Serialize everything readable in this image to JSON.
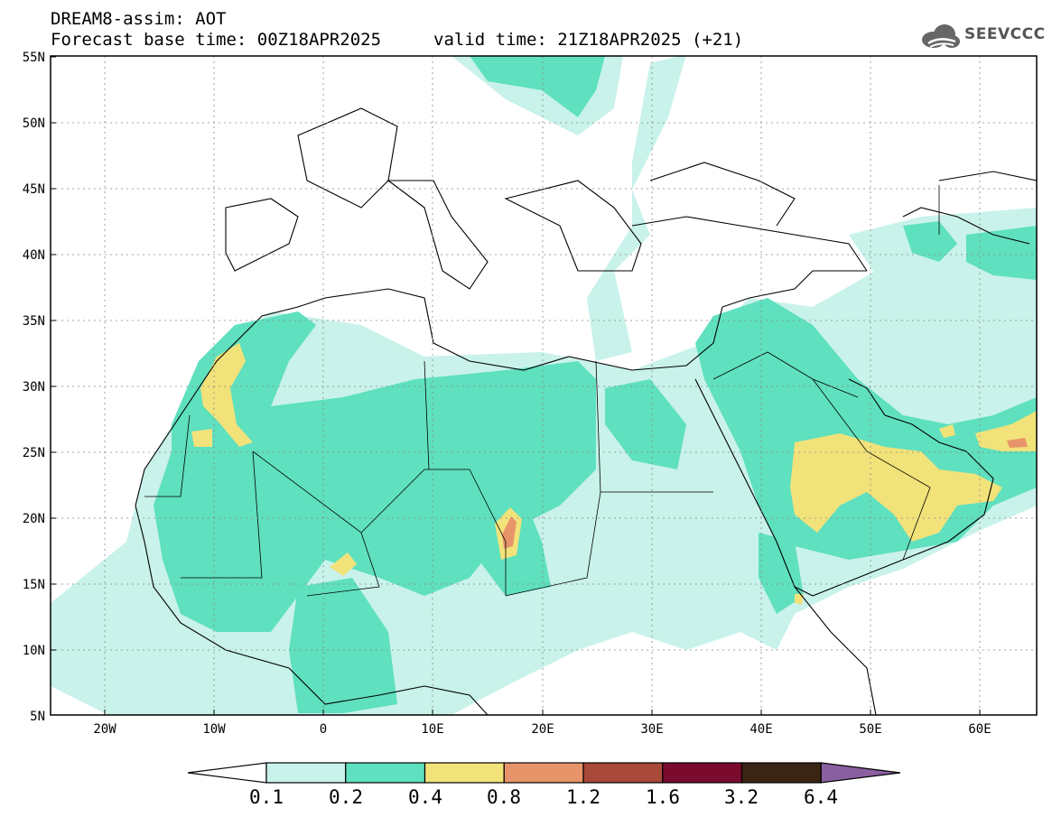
{
  "title_line1": "DREAM8-assim: AOT",
  "title_line2": "Forecast base time: 00Z18APR2025",
  "valid_time": "valid time: 21Z18APR2025 (+21)",
  "logo_text": "SEEVCCC",
  "lat_labels": [
    "55N",
    "50N",
    "45N",
    "40N",
    "35N",
    "30N",
    "25N",
    "20N",
    "15N",
    "10N",
    "5N"
  ],
  "lon_labels": [
    "20W",
    "10W",
    "0",
    "10E",
    "20E",
    "30E",
    "40E",
    "50E",
    "60E"
  ],
  "colorbar": {
    "labels": [
      "0.1",
      "0.2",
      "0.4",
      "0.8",
      "1.2",
      "1.6",
      "3.2",
      "6.4"
    ],
    "colors": [
      "#ffffff",
      "#c8f2ea",
      "#5fe0bf",
      "#f2e27a",
      "#e8946a",
      "#a8493a",
      "#7a0a2e",
      "#3a2414",
      "#8a5fa0"
    ]
  },
  "colors": {
    "frame": "#000000",
    "grid": "#888888"
  }
}
